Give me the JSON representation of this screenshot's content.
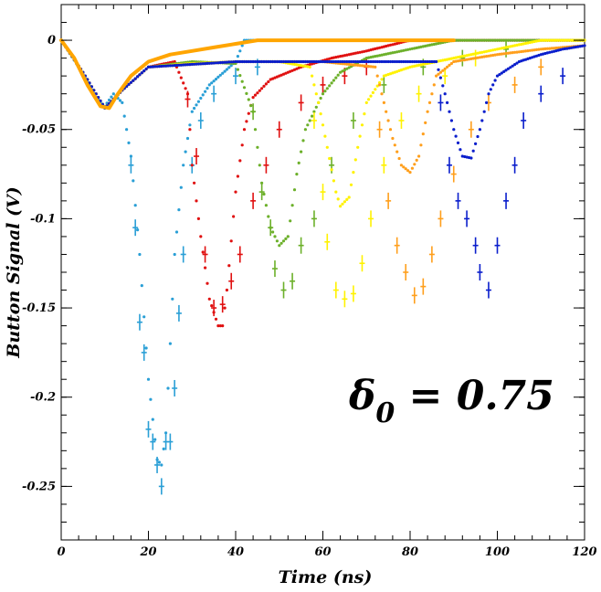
{
  "chart_data": {
    "type": "scatter",
    "xlabel": "Time (ns)",
    "ylabel": "Button Signal (V)",
    "xlim": [
      0,
      120
    ],
    "ylim": [
      -0.28,
      0.02
    ],
    "xticks": [
      0,
      20,
      40,
      60,
      80,
      100,
      120
    ],
    "xtick_labels": [
      "0",
      "20",
      "40",
      "60",
      "80",
      "100",
      "120"
    ],
    "yticks": [
      0,
      -0.05,
      -0.1,
      -0.15,
      -0.2,
      -0.25
    ],
    "ytick_labels": [
      "0",
      "-0.05",
      "-0.1",
      "-0.15",
      "-0.2",
      "-0.25"
    ],
    "grid": false,
    "annotation": {
      "symbol": "δ",
      "subscript": "0",
      "text": " = 0.75"
    },
    "series": [
      {
        "color": "#2a9fd6",
        "style": "dots",
        "points": [
          [
            0,
            0
          ],
          [
            4,
            -0.015
          ],
          [
            8,
            -0.032
          ],
          [
            10,
            -0.037
          ],
          [
            12,
            -0.03
          ],
          [
            14,
            -0.035
          ],
          [
            16,
            -0.065
          ],
          [
            18,
            -0.12
          ],
          [
            20,
            -0.19
          ],
          [
            22,
            -0.235
          ],
          [
            23,
            -0.238
          ],
          [
            24,
            -0.22
          ],
          [
            25,
            -0.17
          ],
          [
            26,
            -0.12
          ],
          [
            28,
            -0.07
          ],
          [
            30,
            -0.04
          ],
          [
            34,
            -0.025
          ],
          [
            40,
            -0.012
          ],
          [
            42,
            0
          ],
          [
            44,
            0
          ],
          [
            52,
            0
          ],
          [
            60,
            0
          ],
          [
            70,
            0
          ],
          [
            91,
            0
          ]
        ],
        "errorbars": [
          [
            16,
            -0.07
          ],
          [
            17,
            -0.105
          ],
          [
            18,
            -0.158
          ],
          [
            19,
            -0.175
          ],
          [
            20,
            -0.218
          ],
          [
            21,
            -0.225
          ],
          [
            22,
            -0.238
          ],
          [
            23,
            -0.25
          ],
          [
            24,
            -0.225
          ],
          [
            25,
            -0.225
          ],
          [
            26,
            -0.195
          ],
          [
            27,
            -0.153
          ],
          [
            28,
            -0.12
          ],
          [
            30,
            -0.07
          ],
          [
            32,
            -0.045
          ],
          [
            35,
            -0.03
          ],
          [
            40,
            -0.02
          ],
          [
            45,
            -0.015
          ]
        ]
      },
      {
        "color": "#e01010",
        "style": "dots",
        "points": [
          [
            0,
            0
          ],
          [
            5,
            -0.018
          ],
          [
            10,
            -0.038
          ],
          [
            14,
            -0.028
          ],
          [
            20,
            -0.015
          ],
          [
            26,
            -0.012
          ],
          [
            29,
            -0.03
          ],
          [
            30,
            -0.07
          ],
          [
            32,
            -0.11
          ],
          [
            34,
            -0.145
          ],
          [
            36,
            -0.16
          ],
          [
            37,
            -0.16
          ],
          [
            38,
            -0.14
          ],
          [
            40,
            -0.085
          ],
          [
            42,
            -0.05
          ],
          [
            44,
            -0.032
          ],
          [
            48,
            -0.022
          ],
          [
            55,
            -0.015
          ],
          [
            62,
            -0.01
          ],
          [
            70,
            -0.006
          ],
          [
            80,
            0
          ],
          [
            85,
            0
          ],
          [
            120,
            0
          ]
        ],
        "errorbars": [
          [
            29,
            -0.033
          ],
          [
            31,
            -0.065
          ],
          [
            33,
            -0.12
          ],
          [
            35,
            -0.15
          ],
          [
            37,
            -0.148
          ],
          [
            39,
            -0.135
          ],
          [
            41,
            -0.12
          ],
          [
            44,
            -0.09
          ],
          [
            47,
            -0.07
          ],
          [
            50,
            -0.05
          ],
          [
            55,
            -0.035
          ],
          [
            60,
            -0.025
          ],
          [
            65,
            -0.02
          ],
          [
            70,
            -0.015
          ]
        ]
      },
      {
        "color": "#6cb02a",
        "style": "dots",
        "points": [
          [
            0,
            0
          ],
          [
            5,
            -0.018
          ],
          [
            10,
            -0.038
          ],
          [
            14,
            -0.028
          ],
          [
            20,
            -0.015
          ],
          [
            30,
            -0.012
          ],
          [
            40,
            -0.013
          ],
          [
            44,
            -0.04
          ],
          [
            46,
            -0.08
          ],
          [
            48,
            -0.105
          ],
          [
            50,
            -0.115
          ],
          [
            52,
            -0.11
          ],
          [
            54,
            -0.075
          ],
          [
            56,
            -0.05
          ],
          [
            60,
            -0.03
          ],
          [
            64,
            -0.018
          ],
          [
            70,
            -0.01
          ],
          [
            80,
            -0.005
          ],
          [
            90,
            0
          ],
          [
            120,
            0
          ]
        ],
        "errorbars": [
          [
            44,
            -0.04
          ],
          [
            46,
            -0.085
          ],
          [
            48,
            -0.105
          ],
          [
            49,
            -0.128
          ],
          [
            51,
            -0.14
          ],
          [
            53,
            -0.135
          ],
          [
            55,
            -0.115
          ],
          [
            58,
            -0.1
          ],
          [
            62,
            -0.07
          ],
          [
            67,
            -0.045
          ],
          [
            74,
            -0.025
          ],
          [
            83,
            -0.015
          ],
          [
            92,
            -0.01
          ],
          [
            102,
            -0.005
          ]
        ]
      },
      {
        "color": "#fff200",
        "style": "dots",
        "points": [
          [
            0,
            0
          ],
          [
            5,
            -0.018
          ],
          [
            10,
            -0.038
          ],
          [
            14,
            -0.028
          ],
          [
            20,
            -0.015
          ],
          [
            30,
            -0.013
          ],
          [
            40,
            -0.012
          ],
          [
            50,
            -0.012
          ],
          [
            57,
            -0.015
          ],
          [
            59,
            -0.035
          ],
          [
            61,
            -0.06
          ],
          [
            63,
            -0.085
          ],
          [
            64,
            -0.093
          ],
          [
            66,
            -0.088
          ],
          [
            68,
            -0.06
          ],
          [
            70,
            -0.035
          ],
          [
            74,
            -0.02
          ],
          [
            80,
            -0.015
          ],
          [
            90,
            -0.01
          ],
          [
            110,
            0
          ],
          [
            120,
            0
          ]
        ],
        "errorbars": [
          [
            58,
            -0.045
          ],
          [
            60,
            -0.085
          ],
          [
            61,
            -0.113
          ],
          [
            63,
            -0.14
          ],
          [
            65,
            -0.145
          ],
          [
            67,
            -0.142
          ],
          [
            69,
            -0.125
          ],
          [
            71,
            -0.1
          ],
          [
            74,
            -0.07
          ],
          [
            78,
            -0.045
          ],
          [
            82,
            -0.03
          ],
          [
            88,
            -0.02
          ],
          [
            95,
            -0.01
          ]
        ]
      },
      {
        "color": "#ff9f1c",
        "style": "dots",
        "points": [
          [
            0,
            0
          ],
          [
            5,
            -0.018
          ],
          [
            10,
            -0.038
          ],
          [
            14,
            -0.028
          ],
          [
            20,
            -0.015
          ],
          [
            40,
            -0.012
          ],
          [
            60,
            -0.012
          ],
          [
            72,
            -0.015
          ],
          [
            74,
            -0.035
          ],
          [
            76,
            -0.055
          ],
          [
            78,
            -0.07
          ],
          [
            80,
            -0.074
          ],
          [
            82,
            -0.065
          ],
          [
            84,
            -0.04
          ],
          [
            86,
            -0.02
          ],
          [
            90,
            -0.012
          ],
          [
            100,
            -0.008
          ],
          [
            110,
            -0.005
          ],
          [
            120,
            -0.003
          ]
        ],
        "errorbars": [
          [
            73,
            -0.05
          ],
          [
            75,
            -0.09
          ],
          [
            77,
            -0.115
          ],
          [
            79,
            -0.13
          ],
          [
            81,
            -0.143
          ],
          [
            83,
            -0.138
          ],
          [
            85,
            -0.12
          ],
          [
            87,
            -0.1
          ],
          [
            90,
            -0.075
          ],
          [
            94,
            -0.05
          ],
          [
            98,
            -0.035
          ],
          [
            104,
            -0.025
          ],
          [
            110,
            -0.015
          ]
        ]
      },
      {
        "color": "#0a1ecc",
        "style": "dots",
        "points": [
          [
            0,
            0
          ],
          [
            5,
            -0.018
          ],
          [
            10,
            -0.038
          ],
          [
            14,
            -0.028
          ],
          [
            20,
            -0.015
          ],
          [
            40,
            -0.012
          ],
          [
            60,
            -0.012
          ],
          [
            80,
            -0.012
          ],
          [
            86,
            -0.012
          ],
          [
            88,
            -0.03
          ],
          [
            90,
            -0.05
          ],
          [
            92,
            -0.065
          ],
          [
            94,
            -0.066
          ],
          [
            96,
            -0.05
          ],
          [
            98,
            -0.03
          ],
          [
            100,
            -0.02
          ],
          [
            105,
            -0.012
          ],
          [
            110,
            -0.008
          ],
          [
            115,
            -0.005
          ],
          [
            120,
            -0.003
          ]
        ],
        "errorbars": [
          [
            87,
            -0.035
          ],
          [
            89,
            -0.07
          ],
          [
            91,
            -0.09
          ],
          [
            93,
            -0.1
          ],
          [
            95,
            -0.115
          ],
          [
            96,
            -0.13
          ],
          [
            98,
            -0.14
          ],
          [
            100,
            -0.115
          ],
          [
            102,
            -0.09
          ],
          [
            104,
            -0.07
          ],
          [
            106,
            -0.045
          ],
          [
            110,
            -0.03
          ],
          [
            115,
            -0.02
          ]
        ]
      },
      {
        "color": "#ffa500",
        "style": "line",
        "points": [
          [
            0,
            0
          ],
          [
            3,
            -0.01
          ],
          [
            6,
            -0.025
          ],
          [
            9,
            -0.037
          ],
          [
            11,
            -0.038
          ],
          [
            13,
            -0.03
          ],
          [
            16,
            -0.02
          ],
          [
            20,
            -0.012
          ],
          [
            25,
            -0.008
          ],
          [
            30,
            -0.006
          ],
          [
            35,
            -0.004
          ],
          [
            40,
            -0.002
          ],
          [
            45,
            0
          ],
          [
            60,
            0
          ],
          [
            90,
            0
          ]
        ],
        "errorbars": []
      }
    ]
  }
}
